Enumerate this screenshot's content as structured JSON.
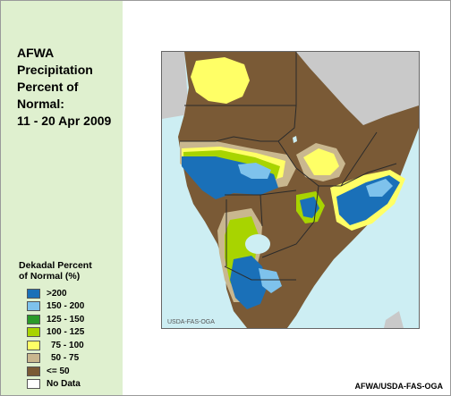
{
  "title_lines": [
    "AFWA",
    "Precipitation",
    "Percent of",
    "Normal:",
    "11 - 20 Apr 2009"
  ],
  "legend": {
    "title_lines": [
      "Dekadal Percent",
      "of Normal (%)"
    ],
    "items": [
      {
        "label": ">200",
        "color": "#1a70b8"
      },
      {
        "label": "150 - 200",
        "color": "#7ec2ec"
      },
      {
        "label": "125 - 150",
        "color": "#2a9a2a"
      },
      {
        "label": "100 - 125",
        "color": "#a8d400"
      },
      {
        "label": "75 - 100",
        "color": "#ffff66"
      },
      {
        "label": "50 - 75",
        "color": "#c9b78f"
      },
      {
        "label": "<= 50",
        "color": "#7a5a36"
      },
      {
        "label": "No Data",
        "color": "#ffffff"
      }
    ]
  },
  "map": {
    "watermark": "USDA-FAS-OGA",
    "colors": {
      "ocean": "#cdeef3",
      "outside_land": "#c9c9c9",
      "border": "#2b2b2b"
    }
  },
  "credit": "AFWA/USDA-FAS-OGA"
}
